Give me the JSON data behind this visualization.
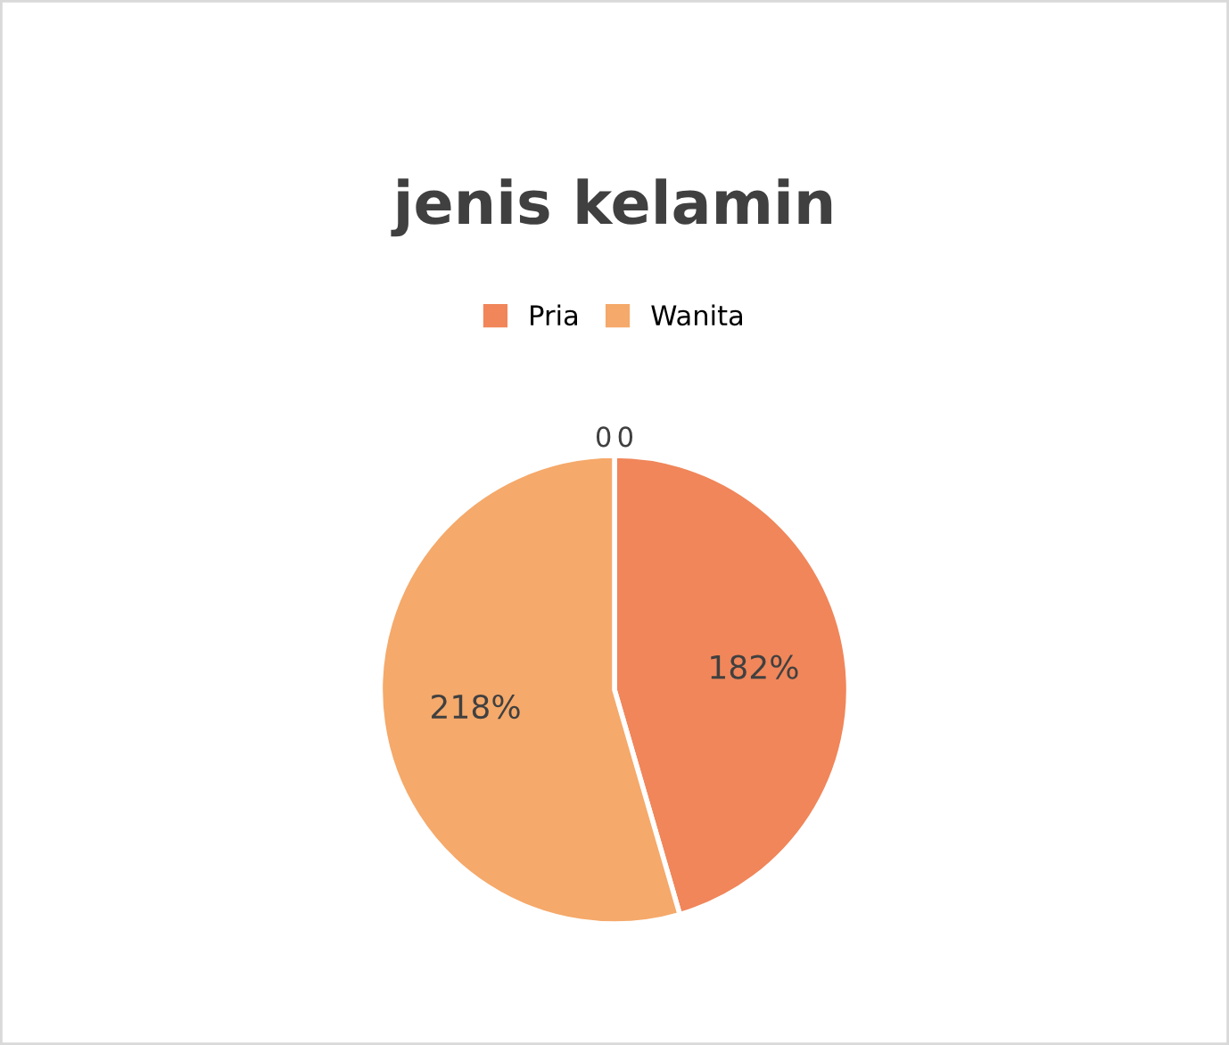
{
  "chart_data": {
    "type": "pie",
    "title": "jenis kelamin",
    "categories": [
      "Pria",
      "Wanita",
      null,
      null
    ],
    "values": [
      182,
      218,
      0,
      0
    ],
    "colors": [
      "#f0865a",
      "#f5a96a",
      "#f0865a",
      "#f5a96a"
    ],
    "value_labels": [
      "182%",
      "218%",
      "0",
      "0"
    ],
    "legend": "top"
  }
}
